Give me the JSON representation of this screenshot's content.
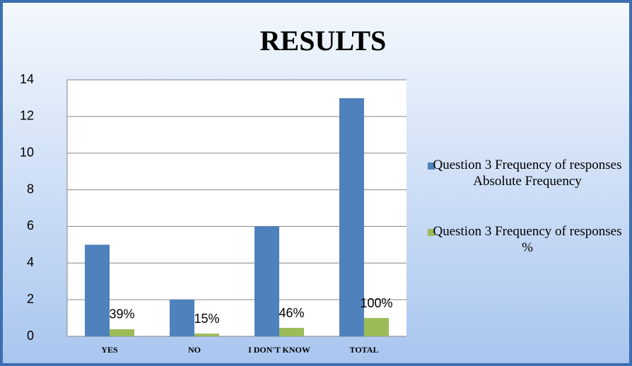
{
  "chart_data": {
    "type": "bar",
    "title": "RESULTS",
    "categories": [
      "YES",
      "NO",
      "I DON'T KNOW",
      "TOTAL"
    ],
    "series": [
      {
        "name": "Question 3 Frequency of responses Absolute Frequency",
        "color": "#4f81bd",
        "values": [
          5,
          2,
          6,
          13
        ]
      },
      {
        "name": "Question 3 Frequency of responses %",
        "color": "#9bbb59",
        "values": [
          0.39,
          0.15,
          0.46,
          1
        ],
        "value_labels": [
          "39%",
          "15%",
          "46%",
          "100%"
        ]
      }
    ],
    "ylim": [
      0,
      14
    ],
    "yticks": [
      0,
      2,
      4,
      6,
      8,
      10,
      12,
      14
    ],
    "grid": true,
    "legend": "right"
  }
}
